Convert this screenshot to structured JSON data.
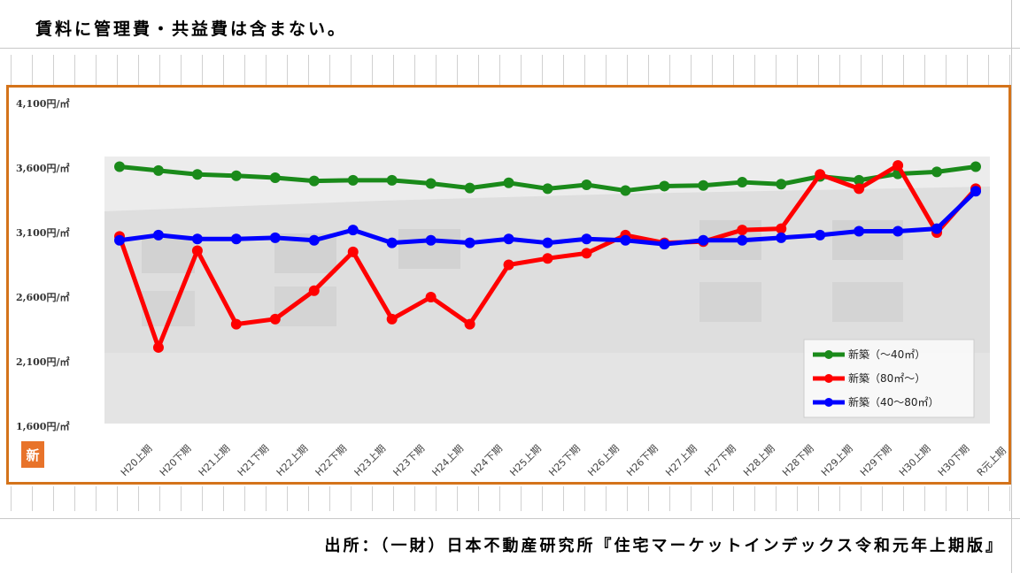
{
  "note": "賃料に管理費・共益費は含まない。",
  "source": "出所：（一財）日本不動産研究所『住宅マーケットインデックス令和元年上期版』",
  "badge_char": "新",
  "colors": {
    "frame": "#d4731a",
    "badge": "#e8732a",
    "photo_bg": "#e9e9e9",
    "building": "#d8d8d8",
    "green": "#1a8a1a",
    "red": "#ff0000",
    "blue": "#0000ff"
  },
  "chart_data": {
    "type": "line",
    "title": "",
    "xlabel": "",
    "ylabel": "",
    "ylim": [
      1600,
      4100
    ],
    "y_ticks": [
      1600,
      2100,
      2600,
      3100,
      3600,
      4100
    ],
    "y_tick_labels": [
      "1,600円/㎡",
      "2,100円/㎡",
      "2,600円/㎡",
      "3,100円/㎡",
      "3,600円/㎡",
      "4,100円/㎡"
    ],
    "categories": [
      "H20上期",
      "H20下期",
      "H21上期",
      "H21下期",
      "H22上期",
      "H22下期",
      "H23上期",
      "H23下期",
      "H24上期",
      "H24下期",
      "H25上期",
      "H25下期",
      "H26上期",
      "H26下期",
      "H27上期",
      "H27下期",
      "H28上期",
      "H28下期",
      "H29上期",
      "H29下期",
      "H30上期",
      "H30下期",
      "R元上期"
    ],
    "legend_position": "bottom-right",
    "grid": false,
    "series": [
      {
        "name": "新築（～40㎡）",
        "color": "#1a8a1a",
        "values": [
          3610,
          3580,
          3550,
          3540,
          3525,
          3500,
          3505,
          3505,
          3480,
          3445,
          3485,
          3440,
          3470,
          3425,
          3460,
          3465,
          3490,
          3475,
          3535,
          3505,
          3555,
          3570,
          3610
        ]
      },
      {
        "name": "新築（80㎡～）",
        "color": "#ff0000",
        "values": [
          3070,
          2210,
          2960,
          2390,
          2430,
          2650,
          2950,
          2430,
          2600,
          2390,
          2850,
          2900,
          2940,
          3080,
          3020,
          3030,
          3120,
          3130,
          3550,
          3440,
          3620,
          3100,
          3440
        ]
      },
      {
        "name": "新築（40～80㎡）",
        "color": "#0000ff",
        "values": [
          3040,
          3080,
          3050,
          3050,
          3060,
          3040,
          3120,
          3020,
          3040,
          3020,
          3050,
          3020,
          3050,
          3040,
          3010,
          3040,
          3040,
          3060,
          3080,
          3110,
          3110,
          3130,
          3420
        ]
      }
    ]
  }
}
